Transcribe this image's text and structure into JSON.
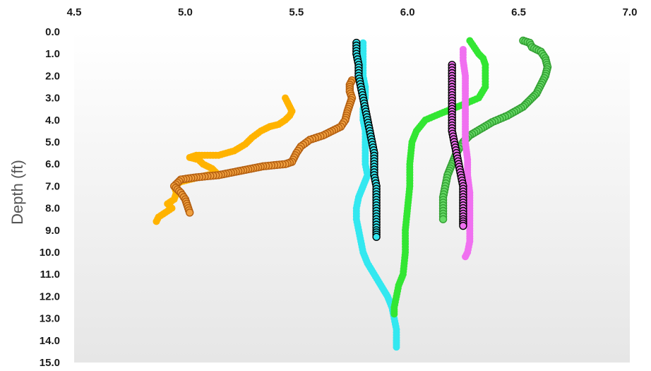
{
  "chart_data": {
    "type": "scatter",
    "title": "",
    "xlabel": "",
    "ylabel": "Depth (ft)",
    "xlim": [
      4.5,
      7.0
    ],
    "ylim": [
      0.0,
      15.0
    ],
    "y_inverted": true,
    "x_axis_position": "top",
    "x_ticks": [
      "4.5",
      "5.0",
      "5.5",
      "6.0",
      "6.5",
      "7.0"
    ],
    "y_ticks": [
      "0.0",
      "1.0",
      "2.0",
      "3.0",
      "4.0",
      "5.0",
      "6.0",
      "7.0",
      "8.0",
      "9.0",
      "10.0",
      "11.0",
      "12.0",
      "13.0",
      "14.0",
      "15.0"
    ],
    "grid": false,
    "legend": "none",
    "plot_background": "light gray vertical gradient",
    "series": [
      {
        "color": "#FFB300",
        "stroke": "#FFB300",
        "marker": "circle",
        "line": "none",
        "points": [
          [
            5.45,
            3.0
          ],
          [
            5.46,
            3.2
          ],
          [
            5.47,
            3.4
          ],
          [
            5.48,
            3.6
          ],
          [
            5.47,
            3.8
          ],
          [
            5.45,
            4.0
          ],
          [
            5.42,
            4.2
          ],
          [
            5.38,
            4.3
          ],
          [
            5.34,
            4.5
          ],
          [
            5.3,
            4.8
          ],
          [
            5.27,
            5.1
          ],
          [
            5.22,
            5.4
          ],
          [
            5.15,
            5.6
          ],
          [
            5.05,
            5.6
          ],
          [
            5.02,
            5.7
          ],
          [
            5.06,
            5.8
          ],
          [
            5.08,
            6.0
          ],
          [
            5.12,
            6.2
          ],
          [
            5.14,
            6.4
          ],
          [
            5.06,
            6.6
          ],
          [
            4.98,
            6.8
          ],
          [
            4.95,
            7.0
          ],
          [
            4.96,
            7.3
          ],
          [
            4.95,
            7.6
          ],
          [
            4.92,
            7.8
          ],
          [
            4.94,
            8.0
          ],
          [
            4.91,
            8.2
          ],
          [
            4.88,
            8.4
          ],
          [
            4.87,
            8.6
          ]
        ]
      },
      {
        "color": "#F0A040",
        "stroke": "#B45F10",
        "marker": "circle",
        "line": "dotted",
        "points": [
          [
            5.75,
            2.2
          ],
          [
            5.74,
            2.4
          ],
          [
            5.74,
            2.7
          ],
          [
            5.75,
            3.0
          ],
          [
            5.74,
            3.3
          ],
          [
            5.73,
            3.6
          ],
          [
            5.72,
            4.0
          ],
          [
            5.7,
            4.3
          ],
          [
            5.66,
            4.5
          ],
          [
            5.62,
            4.7
          ],
          [
            5.56,
            4.9
          ],
          [
            5.52,
            5.2
          ],
          [
            5.5,
            5.5
          ],
          [
            5.48,
            5.9
          ],
          [
            5.45,
            6.0
          ],
          [
            5.35,
            6.1
          ],
          [
            5.25,
            6.3
          ],
          [
            5.15,
            6.5
          ],
          [
            5.05,
            6.6
          ],
          [
            4.98,
            6.7
          ],
          [
            4.95,
            7.0
          ],
          [
            4.98,
            7.3
          ],
          [
            5.0,
            7.6
          ],
          [
            5.01,
            7.9
          ],
          [
            5.02,
            8.2
          ]
        ]
      },
      {
        "color": "#33E8F0",
        "stroke": "#33E8F0",
        "marker": "circle",
        "line": "none",
        "points": [
          [
            5.8,
            0.5
          ],
          [
            5.8,
            1.0
          ],
          [
            5.8,
            1.5
          ],
          [
            5.8,
            2.0
          ],
          [
            5.81,
            2.5
          ],
          [
            5.81,
            3.0
          ],
          [
            5.8,
            3.5
          ],
          [
            5.8,
            4.0
          ],
          [
            5.81,
            4.5
          ],
          [
            5.81,
            5.0
          ],
          [
            5.81,
            5.5
          ],
          [
            5.81,
            6.0
          ],
          [
            5.82,
            6.5
          ],
          [
            5.8,
            7.0
          ],
          [
            5.78,
            7.5
          ],
          [
            5.77,
            8.0
          ],
          [
            5.77,
            8.5
          ],
          [
            5.78,
            9.0
          ],
          [
            5.79,
            9.5
          ],
          [
            5.8,
            10.0
          ],
          [
            5.82,
            10.5
          ],
          [
            5.85,
            11.0
          ],
          [
            5.88,
            11.5
          ],
          [
            5.91,
            12.0
          ],
          [
            5.93,
            12.5
          ],
          [
            5.94,
            13.0
          ],
          [
            5.95,
            13.5
          ],
          [
            5.95,
            14.0
          ],
          [
            5.95,
            14.3
          ]
        ]
      },
      {
        "color": "#33E8F0",
        "stroke": "#000000",
        "marker": "circle",
        "line": "none",
        "points": [
          [
            5.77,
            0.5
          ],
          [
            5.77,
            1.0
          ],
          [
            5.78,
            1.5
          ],
          [
            5.78,
            2.0
          ],
          [
            5.79,
            2.5
          ],
          [
            5.8,
            3.0
          ],
          [
            5.81,
            3.5
          ],
          [
            5.82,
            4.0
          ],
          [
            5.83,
            4.5
          ],
          [
            5.84,
            5.0
          ],
          [
            5.85,
            5.5
          ],
          [
            5.85,
            6.0
          ],
          [
            5.85,
            6.5
          ],
          [
            5.86,
            7.0
          ],
          [
            5.86,
            7.5
          ],
          [
            5.86,
            8.0
          ],
          [
            5.86,
            8.5
          ],
          [
            5.86,
            9.0
          ],
          [
            5.86,
            9.3
          ]
        ]
      },
      {
        "color": "#33E633",
        "stroke": "#33E633",
        "marker": "circle",
        "line": "none",
        "points": [
          [
            6.28,
            0.4
          ],
          [
            6.3,
            0.7
          ],
          [
            6.32,
            1.0
          ],
          [
            6.34,
            1.2
          ],
          [
            6.35,
            1.5
          ],
          [
            6.35,
            2.0
          ],
          [
            6.35,
            2.5
          ],
          [
            6.32,
            3.0
          ],
          [
            6.25,
            3.3
          ],
          [
            6.15,
            3.7
          ],
          [
            6.08,
            4.0
          ],
          [
            6.04,
            4.5
          ],
          [
            6.02,
            5.0
          ],
          [
            6.01,
            6.0
          ],
          [
            6.01,
            7.0
          ],
          [
            6.0,
            8.0
          ],
          [
            5.99,
            9.0
          ],
          [
            5.99,
            10.0
          ],
          [
            5.98,
            11.0
          ],
          [
            5.96,
            11.5
          ],
          [
            5.95,
            12.0
          ],
          [
            5.94,
            12.5
          ],
          [
            5.94,
            12.8
          ]
        ]
      },
      {
        "color": "#66D966",
        "stroke": "#33A033",
        "marker": "circle",
        "line": "none",
        "points": [
          [
            6.52,
            0.4
          ],
          [
            6.55,
            0.5
          ],
          [
            6.56,
            0.7
          ],
          [
            6.6,
            0.9
          ],
          [
            6.62,
            1.2
          ],
          [
            6.63,
            1.6
          ],
          [
            6.62,
            2.0
          ],
          [
            6.6,
            2.4
          ],
          [
            6.58,
            2.8
          ],
          [
            6.55,
            3.1
          ],
          [
            6.52,
            3.4
          ],
          [
            6.45,
            3.8
          ],
          [
            6.38,
            4.1
          ],
          [
            6.33,
            4.4
          ],
          [
            6.28,
            4.7
          ],
          [
            6.25,
            5.0
          ],
          [
            6.22,
            5.5
          ],
          [
            6.2,
            6.0
          ],
          [
            6.18,
            6.5
          ],
          [
            6.17,
            7.0
          ],
          [
            6.16,
            7.5
          ],
          [
            6.16,
            8.0
          ],
          [
            6.16,
            8.5
          ]
        ]
      },
      {
        "color": "#F070F0",
        "stroke": "#F070F0",
        "marker": "circle",
        "line": "none",
        "points": [
          [
            6.25,
            0.8
          ],
          [
            6.25,
            1.3
          ],
          [
            6.26,
            2.0
          ],
          [
            6.26,
            2.8
          ],
          [
            6.26,
            3.5
          ],
          [
            6.26,
            4.3
          ],
          [
            6.26,
            5.0
          ],
          [
            6.27,
            5.8
          ],
          [
            6.27,
            6.5
          ],
          [
            6.28,
            7.3
          ],
          [
            6.28,
            8.0
          ],
          [
            6.28,
            8.8
          ],
          [
            6.28,
            9.5
          ],
          [
            6.27,
            10.0
          ],
          [
            6.26,
            10.2
          ]
        ]
      },
      {
        "color": "#F070F0",
        "stroke": "#000000",
        "marker": "circle",
        "line": "none",
        "points": [
          [
            6.2,
            1.5
          ],
          [
            6.2,
            2.0
          ],
          [
            6.2,
            2.5
          ],
          [
            6.2,
            3.0
          ],
          [
            6.2,
            3.5
          ],
          [
            6.2,
            4.0
          ],
          [
            6.2,
            4.5
          ],
          [
            6.21,
            5.0
          ],
          [
            6.22,
            5.5
          ],
          [
            6.23,
            6.0
          ],
          [
            6.24,
            6.5
          ],
          [
            6.25,
            7.0
          ],
          [
            6.25,
            7.5
          ],
          [
            6.25,
            8.0
          ],
          [
            6.25,
            8.5
          ],
          [
            6.25,
            8.8
          ]
        ]
      }
    ]
  }
}
